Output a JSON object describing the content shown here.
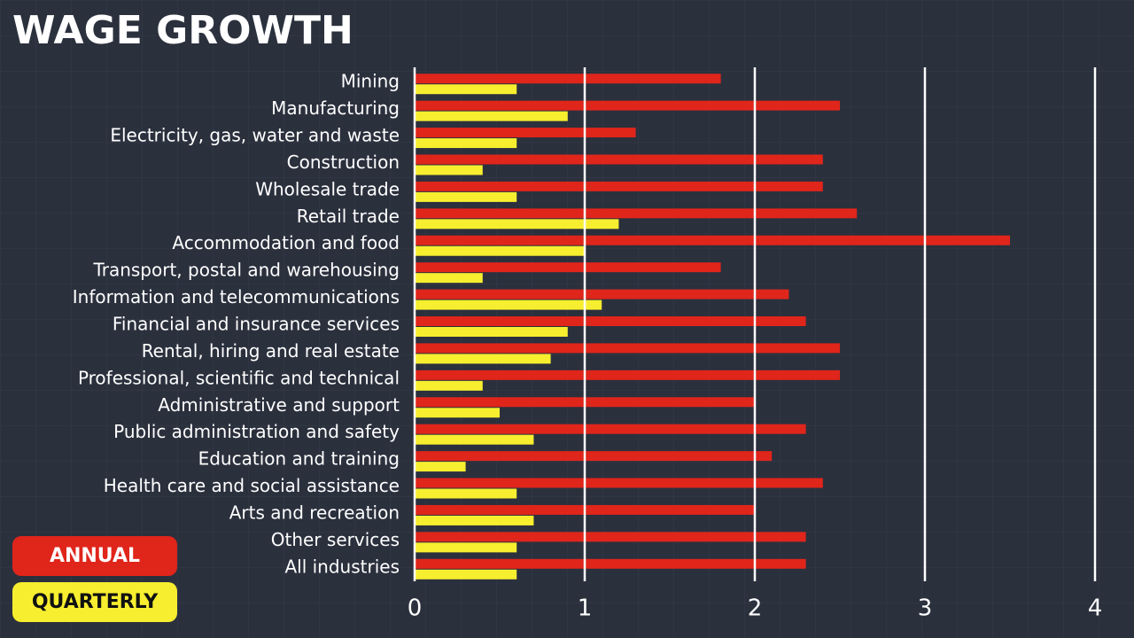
{
  "chart_data": {
    "type": "bar",
    "orientation": "horizontal",
    "title": "WAGE GROWTH",
    "categories": [
      "Mining",
      "Manufacturing",
      "Electricity, gas, water and waste",
      "Construction",
      "Wholesale trade",
      "Retail trade",
      "Accommodation and food",
      "Transport, postal and warehousing",
      "Information and telecommunications",
      "Financial and insurance services",
      "Rental, hiring and real estate",
      "Professional, scientific and technical",
      "Administrative and support",
      "Public administration and safety",
      "Education and training",
      "Health care and social assistance",
      "Arts and recreation",
      "Other services",
      "All industries"
    ],
    "series": [
      {
        "name": "ANNUAL",
        "color": "#e0251b",
        "values": [
          1.8,
          2.5,
          1.3,
          2.4,
          2.4,
          2.6,
          3.5,
          1.8,
          2.2,
          2.3,
          2.5,
          2.5,
          2.0,
          2.3,
          2.1,
          2.4,
          2.0,
          2.3,
          2.3
        ]
      },
      {
        "name": "QUARTERLY",
        "color": "#f7ee2f",
        "values": [
          0.6,
          0.9,
          0.6,
          0.4,
          0.6,
          1.2,
          1.0,
          0.4,
          1.1,
          0.9,
          0.8,
          0.4,
          0.5,
          0.7,
          0.3,
          0.6,
          0.7,
          0.6,
          0.6
        ]
      }
    ],
    "xlim": [
      0,
      4
    ],
    "xticks": [
      0,
      1,
      2,
      3,
      4
    ],
    "grid": true,
    "legend": "bottom-left"
  }
}
